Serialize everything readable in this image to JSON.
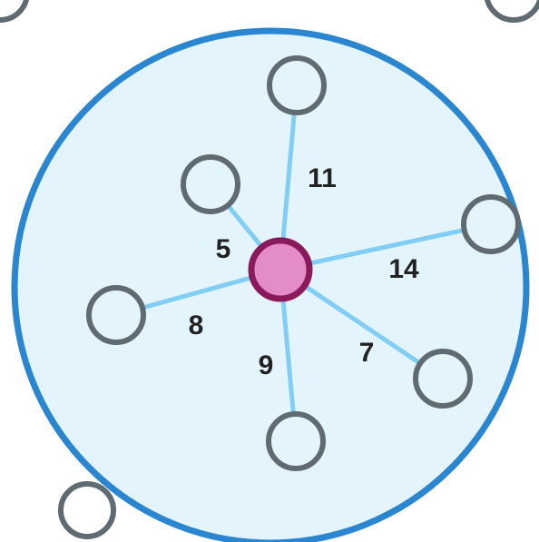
{
  "edges": [
    {
      "weight": 11
    },
    {
      "weight": 5
    },
    {
      "weight": 14
    },
    {
      "weight": 8
    },
    {
      "weight": 7
    },
    {
      "weight": 9
    }
  ]
}
